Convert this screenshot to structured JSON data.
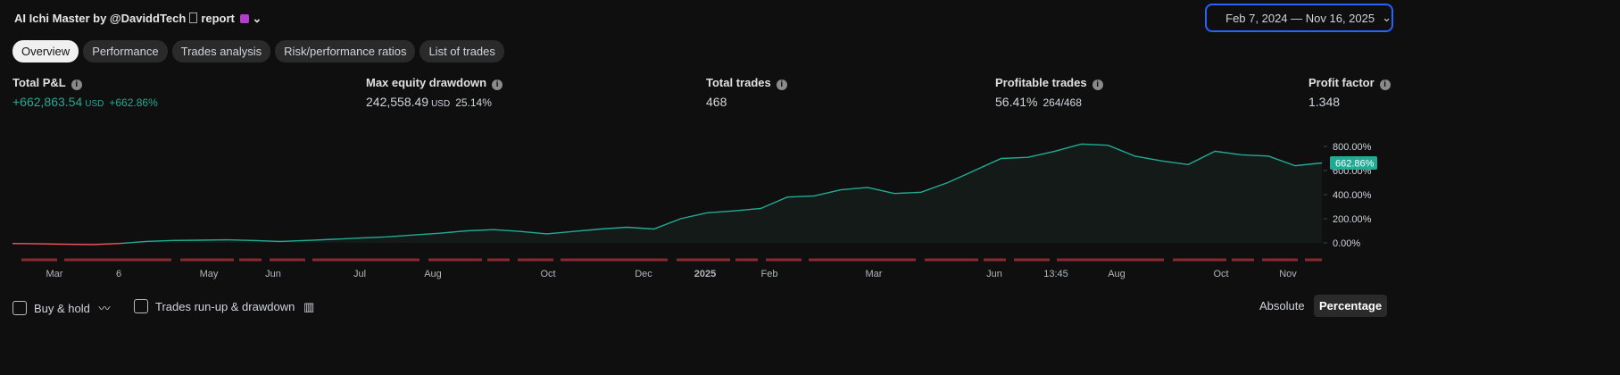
{
  "header": {
    "title": "AI Ichi Master by @DaviddTech",
    "report": "report",
    "date_range": "Feb 7, 2024 — Nov 16, 2025"
  },
  "tabs": {
    "items": [
      "Overview",
      "Performance",
      "Trades analysis",
      "Risk/performance ratios",
      "List of trades"
    ],
    "active": 0
  },
  "metrics": [
    {
      "label": "Total P&L",
      "value": "+662,863.54",
      "unit": "USD",
      "extra": "+662.86%"
    },
    {
      "label": "Max equity drawdown",
      "value": "242,558.49",
      "unit": "USD",
      "extra": "25.14%"
    },
    {
      "label": "Total trades",
      "value": "468"
    },
    {
      "label": "Profitable trades",
      "value": "56.41%",
      "extra": "264/468"
    },
    {
      "label": "Profit factor",
      "value": "1.348"
    }
  ],
  "chart_data": {
    "type": "area",
    "values": [
      -5,
      -8,
      -12,
      -14,
      -5,
      12,
      20,
      22,
      25,
      20,
      12,
      20,
      30,
      40,
      50,
      65,
      80,
      100,
      110,
      95,
      75,
      95,
      115,
      130,
      115,
      200,
      250,
      265,
      285,
      380,
      390,
      440,
      460,
      410,
      420,
      500,
      600,
      700,
      710,
      760,
      820,
      810,
      720,
      680,
      650,
      760,
      730,
      720,
      640,
      662.86
    ],
    "color": "#22ab94",
    "negative_color": "#f7525f",
    "ylim": [
      -60,
      900
    ],
    "yticks": [
      {
        "value": 0,
        "label": "0.00%"
      },
      {
        "value": 200,
        "label": "200.00%"
      },
      {
        "value": 400,
        "label": "400.00%"
      },
      {
        "value": 600,
        "label": "600.00%"
      },
      {
        "value": 800,
        "label": "800.00%"
      }
    ],
    "last_value_label": {
      "value": 662.86,
      "label": "662.86%"
    },
    "x_labels": [
      "Mar",
      "6",
      "May",
      "Jun",
      "Jul",
      "Aug",
      "Oct",
      "Dec",
      "2025",
      "Feb",
      "Mar",
      "Jun",
      "13:45",
      "Aug",
      "Oct",
      "Nov"
    ]
  },
  "footer": {
    "options": [
      "Buy & hold",
      "Trades run-up & drawdown"
    ],
    "modes": [
      "Absolute",
      "Percentage"
    ],
    "active_mode": 1
  }
}
